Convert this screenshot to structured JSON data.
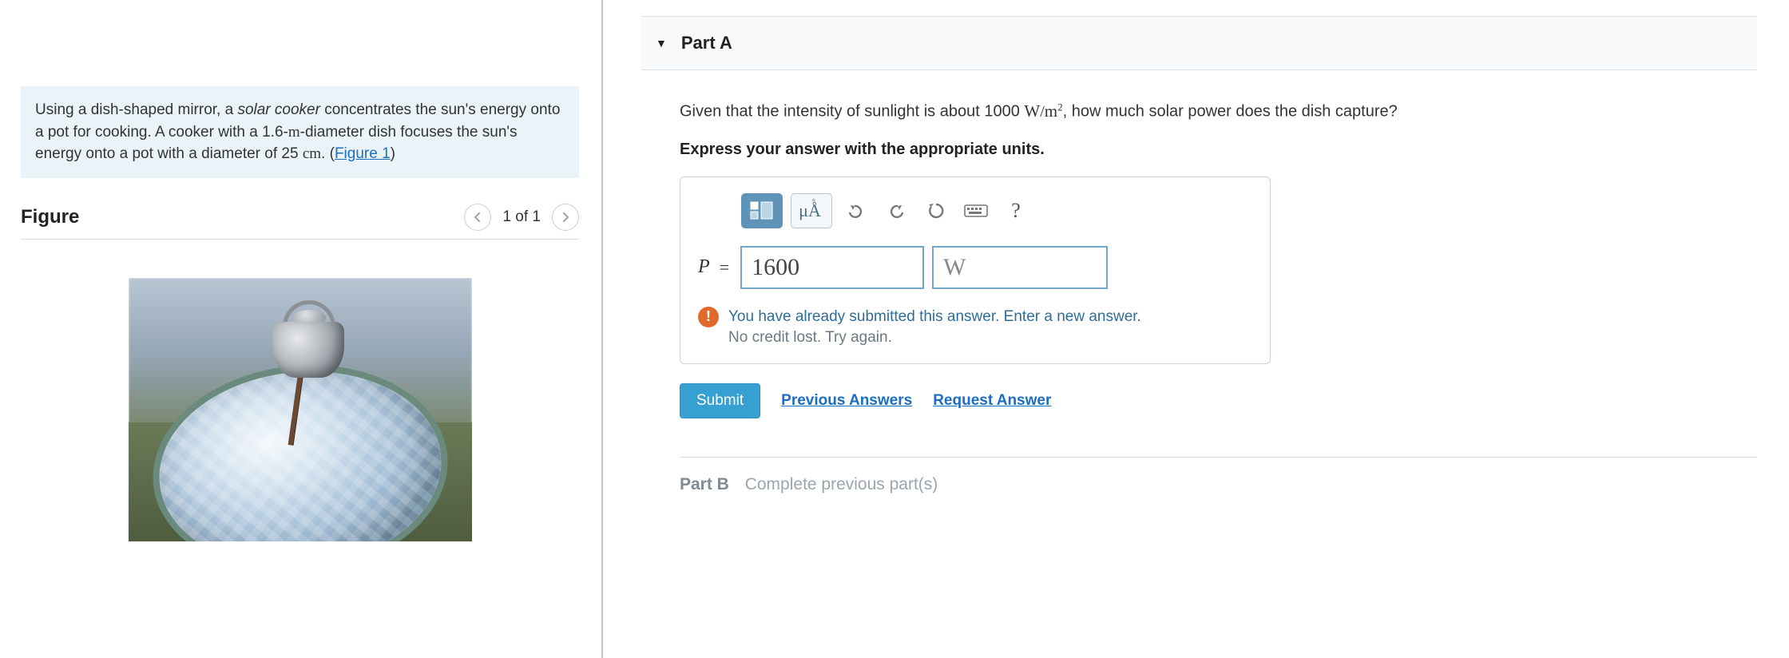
{
  "left": {
    "problem_html": "Using a dish-shaped mirror, a <em>solar cooker</em> concentrates the sun's energy onto a pot for cooking. A cooker with a 1.6-<span class='math'>m</span>-diameter dish focuses the sun's energy onto a pot with a diameter of 25 <span class='math'>cm</span>. (",
    "figure_link_text": "Figure 1",
    "problem_tail": ")",
    "figure_title": "Figure",
    "figure_counter": "1 of 1"
  },
  "partA": {
    "label": "Part A",
    "question_prefix": "Given that the intensity of sunlight is about 1000 ",
    "question_units_html": "<span class='math'><span class='unitW'>W</span>/<span class='unitW'>m</span><sup>2</sup></span>",
    "question_suffix": ", how much solar power does the dish capture?",
    "express": "Express your answer with the appropriate units.",
    "toolbar": {
      "templates_title": "Templates",
      "symbols_label": "μÅ",
      "undo_title": "Undo",
      "redo_title": "Redo",
      "reset_title": "Reset",
      "keyboard_title": "Keyboard",
      "help_label": "?"
    },
    "answer": {
      "var": "P",
      "eq": "=",
      "value": "1600",
      "unit": "W"
    },
    "feedback": {
      "icon": "!",
      "line1": "You have already submitted this answer. Enter a new answer.",
      "line2": "No credit lost. Try again."
    },
    "actions": {
      "submit": "Submit",
      "previous": "Previous Answers",
      "request": "Request Answer"
    }
  },
  "partB": {
    "label": "Part B",
    "note": "Complete previous part(s)"
  }
}
